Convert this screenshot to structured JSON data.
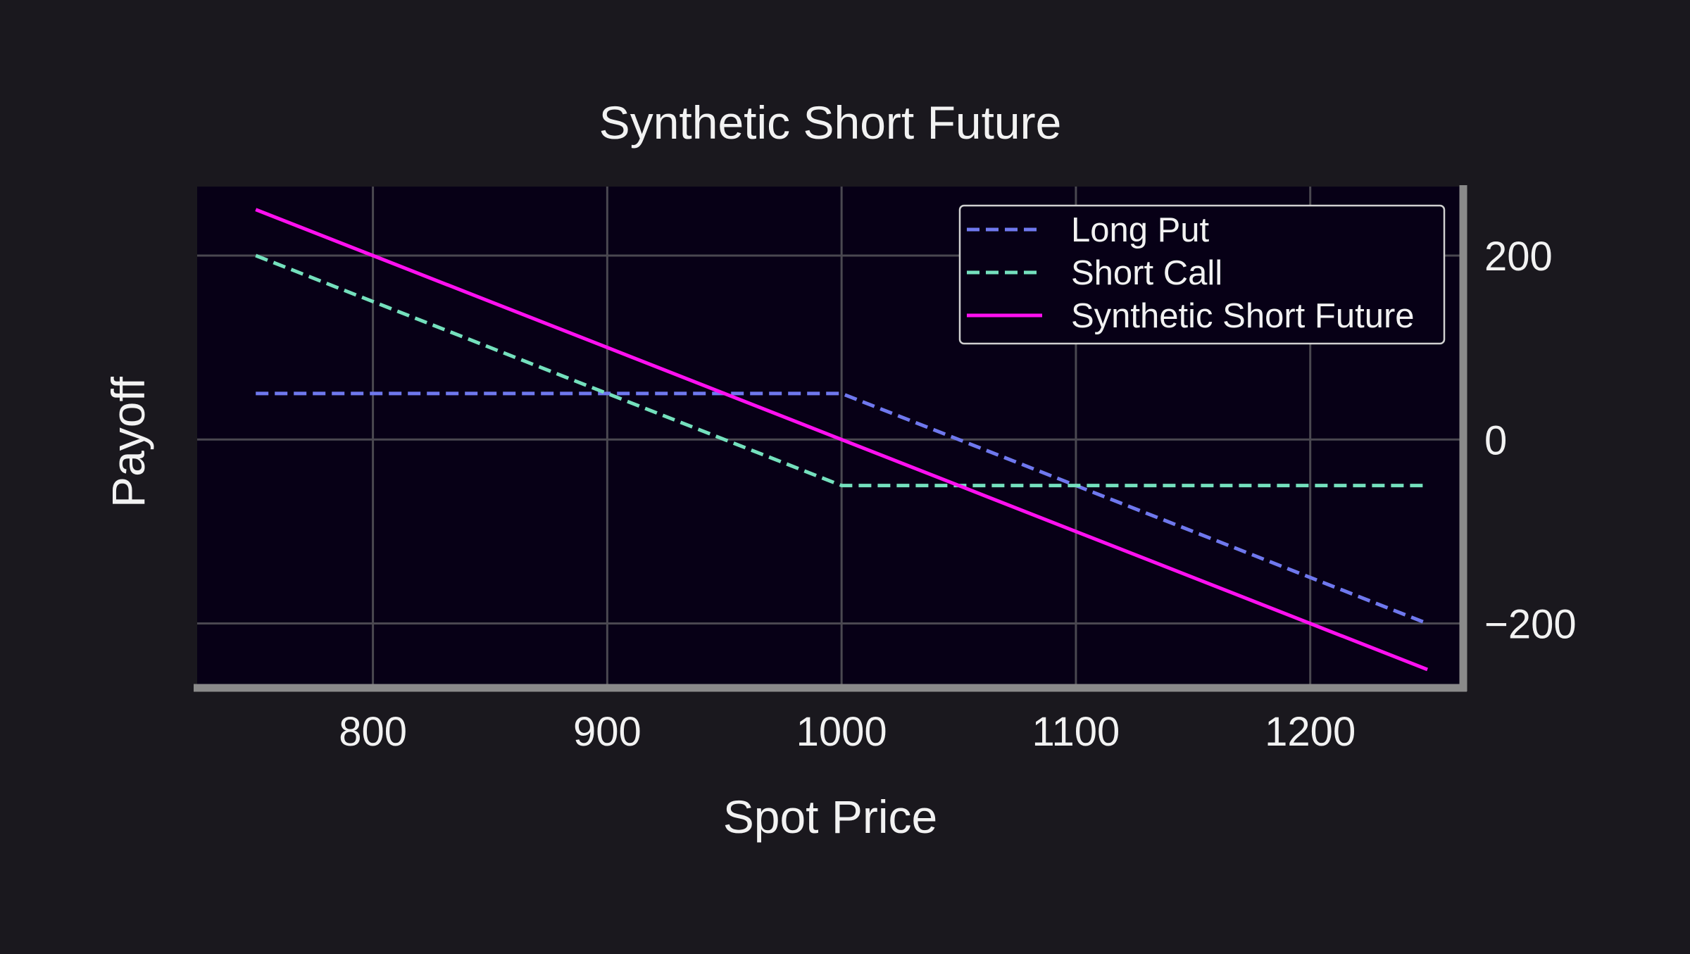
{
  "chart_data": {
    "type": "line",
    "title": "Synthetic Short Future",
    "xlabel": "Spot Price",
    "ylabel": "Payoff",
    "xlim": [
      725,
      1265
    ],
    "ylim": [
      -270,
      275
    ],
    "x_ticks": [
      800,
      900,
      1000,
      1100,
      1200
    ],
    "y_ticks": [
      200,
      0,
      -200
    ],
    "y_tick_labels": [
      "200",
      "0",
      "−200"
    ],
    "y_axis_side": "right",
    "grid": true,
    "legend_position": "top-right",
    "colors": {
      "figure_background": "#1a181e",
      "plot_background": "#070016",
      "grid": "#4a4850",
      "axis_spine": "#8a8a8a",
      "text": "#f2f2f2",
      "legend_border": "#d0d0d0"
    },
    "x": [
      750,
      800,
      850,
      900,
      950,
      1000,
      1050,
      1100,
      1150,
      1200,
      1250
    ],
    "series": [
      {
        "name": "Long Put",
        "style": "dashed",
        "color": "#6f78ee",
        "values": [
          50,
          50,
          50,
          50,
          50,
          50,
          0,
          -50,
          -100,
          -150,
          -200
        ]
      },
      {
        "name": "Short Call",
        "style": "dashed",
        "color": "#74e0bd",
        "values": [
          200,
          150,
          100,
          50,
          0,
          -50,
          -50,
          -50,
          -50,
          -50,
          -50
        ]
      },
      {
        "name": "Synthetic Short Future",
        "style": "solid",
        "color": "#ff10f0",
        "values": [
          250,
          200,
          150,
          100,
          50,
          0,
          -50,
          -100,
          -150,
          -200,
          -250
        ]
      }
    ]
  }
}
